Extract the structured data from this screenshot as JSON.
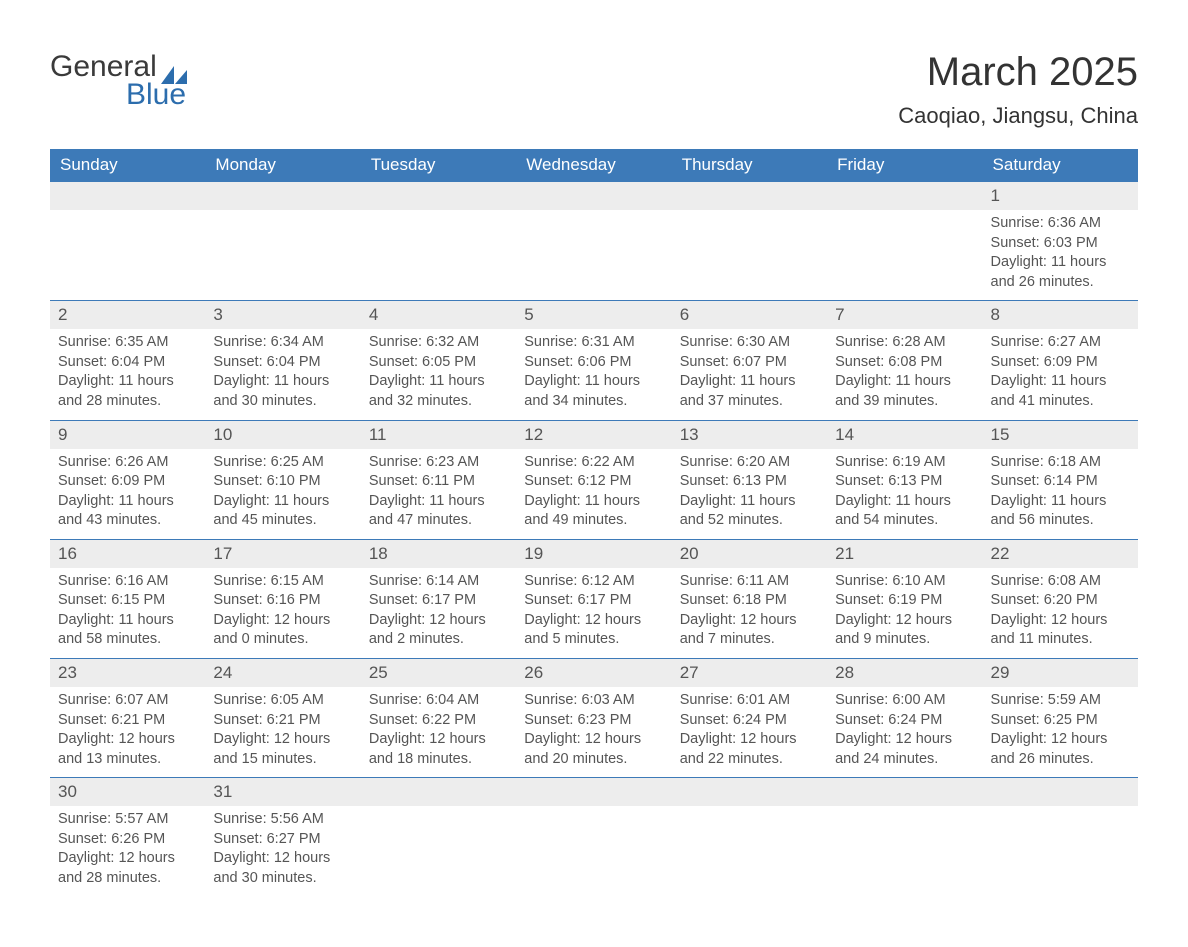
{
  "logo": {
    "text_general": "General",
    "text_blue": "Blue",
    "flag_color": "#2c6dad"
  },
  "title": "March 2025",
  "location": "Caoqiao, Jiangsu, China",
  "colors": {
    "header_bg": "#3d7ab8",
    "header_text": "#ffffff",
    "row_stripe": "#ededed",
    "row_border": "#3d7ab8",
    "body_text": "#555555",
    "background": "#ffffff"
  },
  "day_headers": [
    "Sunday",
    "Monday",
    "Tuesday",
    "Wednesday",
    "Thursday",
    "Friday",
    "Saturday"
  ],
  "weeks": [
    [
      null,
      null,
      null,
      null,
      null,
      null,
      {
        "n": "1",
        "sunrise": "Sunrise: 6:36 AM",
        "sunset": "Sunset: 6:03 PM",
        "day1": "Daylight: 11 hours",
        "day2": "and 26 minutes."
      }
    ],
    [
      {
        "n": "2",
        "sunrise": "Sunrise: 6:35 AM",
        "sunset": "Sunset: 6:04 PM",
        "day1": "Daylight: 11 hours",
        "day2": "and 28 minutes."
      },
      {
        "n": "3",
        "sunrise": "Sunrise: 6:34 AM",
        "sunset": "Sunset: 6:04 PM",
        "day1": "Daylight: 11 hours",
        "day2": "and 30 minutes."
      },
      {
        "n": "4",
        "sunrise": "Sunrise: 6:32 AM",
        "sunset": "Sunset: 6:05 PM",
        "day1": "Daylight: 11 hours",
        "day2": "and 32 minutes."
      },
      {
        "n": "5",
        "sunrise": "Sunrise: 6:31 AM",
        "sunset": "Sunset: 6:06 PM",
        "day1": "Daylight: 11 hours",
        "day2": "and 34 minutes."
      },
      {
        "n": "6",
        "sunrise": "Sunrise: 6:30 AM",
        "sunset": "Sunset: 6:07 PM",
        "day1": "Daylight: 11 hours",
        "day2": "and 37 minutes."
      },
      {
        "n": "7",
        "sunrise": "Sunrise: 6:28 AM",
        "sunset": "Sunset: 6:08 PM",
        "day1": "Daylight: 11 hours",
        "day2": "and 39 minutes."
      },
      {
        "n": "8",
        "sunrise": "Sunrise: 6:27 AM",
        "sunset": "Sunset: 6:09 PM",
        "day1": "Daylight: 11 hours",
        "day2": "and 41 minutes."
      }
    ],
    [
      {
        "n": "9",
        "sunrise": "Sunrise: 6:26 AM",
        "sunset": "Sunset: 6:09 PM",
        "day1": "Daylight: 11 hours",
        "day2": "and 43 minutes."
      },
      {
        "n": "10",
        "sunrise": "Sunrise: 6:25 AM",
        "sunset": "Sunset: 6:10 PM",
        "day1": "Daylight: 11 hours",
        "day2": "and 45 minutes."
      },
      {
        "n": "11",
        "sunrise": "Sunrise: 6:23 AM",
        "sunset": "Sunset: 6:11 PM",
        "day1": "Daylight: 11 hours",
        "day2": "and 47 minutes."
      },
      {
        "n": "12",
        "sunrise": "Sunrise: 6:22 AM",
        "sunset": "Sunset: 6:12 PM",
        "day1": "Daylight: 11 hours",
        "day2": "and 49 minutes."
      },
      {
        "n": "13",
        "sunrise": "Sunrise: 6:20 AM",
        "sunset": "Sunset: 6:13 PM",
        "day1": "Daylight: 11 hours",
        "day2": "and 52 minutes."
      },
      {
        "n": "14",
        "sunrise": "Sunrise: 6:19 AM",
        "sunset": "Sunset: 6:13 PM",
        "day1": "Daylight: 11 hours",
        "day2": "and 54 minutes."
      },
      {
        "n": "15",
        "sunrise": "Sunrise: 6:18 AM",
        "sunset": "Sunset: 6:14 PM",
        "day1": "Daylight: 11 hours",
        "day2": "and 56 minutes."
      }
    ],
    [
      {
        "n": "16",
        "sunrise": "Sunrise: 6:16 AM",
        "sunset": "Sunset: 6:15 PM",
        "day1": "Daylight: 11 hours",
        "day2": "and 58 minutes."
      },
      {
        "n": "17",
        "sunrise": "Sunrise: 6:15 AM",
        "sunset": "Sunset: 6:16 PM",
        "day1": "Daylight: 12 hours",
        "day2": "and 0 minutes."
      },
      {
        "n": "18",
        "sunrise": "Sunrise: 6:14 AM",
        "sunset": "Sunset: 6:17 PM",
        "day1": "Daylight: 12 hours",
        "day2": "and 2 minutes."
      },
      {
        "n": "19",
        "sunrise": "Sunrise: 6:12 AM",
        "sunset": "Sunset: 6:17 PM",
        "day1": "Daylight: 12 hours",
        "day2": "and 5 minutes."
      },
      {
        "n": "20",
        "sunrise": "Sunrise: 6:11 AM",
        "sunset": "Sunset: 6:18 PM",
        "day1": "Daylight: 12 hours",
        "day2": "and 7 minutes."
      },
      {
        "n": "21",
        "sunrise": "Sunrise: 6:10 AM",
        "sunset": "Sunset: 6:19 PM",
        "day1": "Daylight: 12 hours",
        "day2": "and 9 minutes."
      },
      {
        "n": "22",
        "sunrise": "Sunrise: 6:08 AM",
        "sunset": "Sunset: 6:20 PM",
        "day1": "Daylight: 12 hours",
        "day2": "and 11 minutes."
      }
    ],
    [
      {
        "n": "23",
        "sunrise": "Sunrise: 6:07 AM",
        "sunset": "Sunset: 6:21 PM",
        "day1": "Daylight: 12 hours",
        "day2": "and 13 minutes."
      },
      {
        "n": "24",
        "sunrise": "Sunrise: 6:05 AM",
        "sunset": "Sunset: 6:21 PM",
        "day1": "Daylight: 12 hours",
        "day2": "and 15 minutes."
      },
      {
        "n": "25",
        "sunrise": "Sunrise: 6:04 AM",
        "sunset": "Sunset: 6:22 PM",
        "day1": "Daylight: 12 hours",
        "day2": "and 18 minutes."
      },
      {
        "n": "26",
        "sunrise": "Sunrise: 6:03 AM",
        "sunset": "Sunset: 6:23 PM",
        "day1": "Daylight: 12 hours",
        "day2": "and 20 minutes."
      },
      {
        "n": "27",
        "sunrise": "Sunrise: 6:01 AM",
        "sunset": "Sunset: 6:24 PM",
        "day1": "Daylight: 12 hours",
        "day2": "and 22 minutes."
      },
      {
        "n": "28",
        "sunrise": "Sunrise: 6:00 AM",
        "sunset": "Sunset: 6:24 PM",
        "day1": "Daylight: 12 hours",
        "day2": "and 24 minutes."
      },
      {
        "n": "29",
        "sunrise": "Sunrise: 5:59 AM",
        "sunset": "Sunset: 6:25 PM",
        "day1": "Daylight: 12 hours",
        "day2": "and 26 minutes."
      }
    ],
    [
      {
        "n": "30",
        "sunrise": "Sunrise: 5:57 AM",
        "sunset": "Sunset: 6:26 PM",
        "day1": "Daylight: 12 hours",
        "day2": "and 28 minutes."
      },
      {
        "n": "31",
        "sunrise": "Sunrise: 5:56 AM",
        "sunset": "Sunset: 6:27 PM",
        "day1": "Daylight: 12 hours",
        "day2": "and 30 minutes."
      },
      null,
      null,
      null,
      null,
      null
    ]
  ]
}
